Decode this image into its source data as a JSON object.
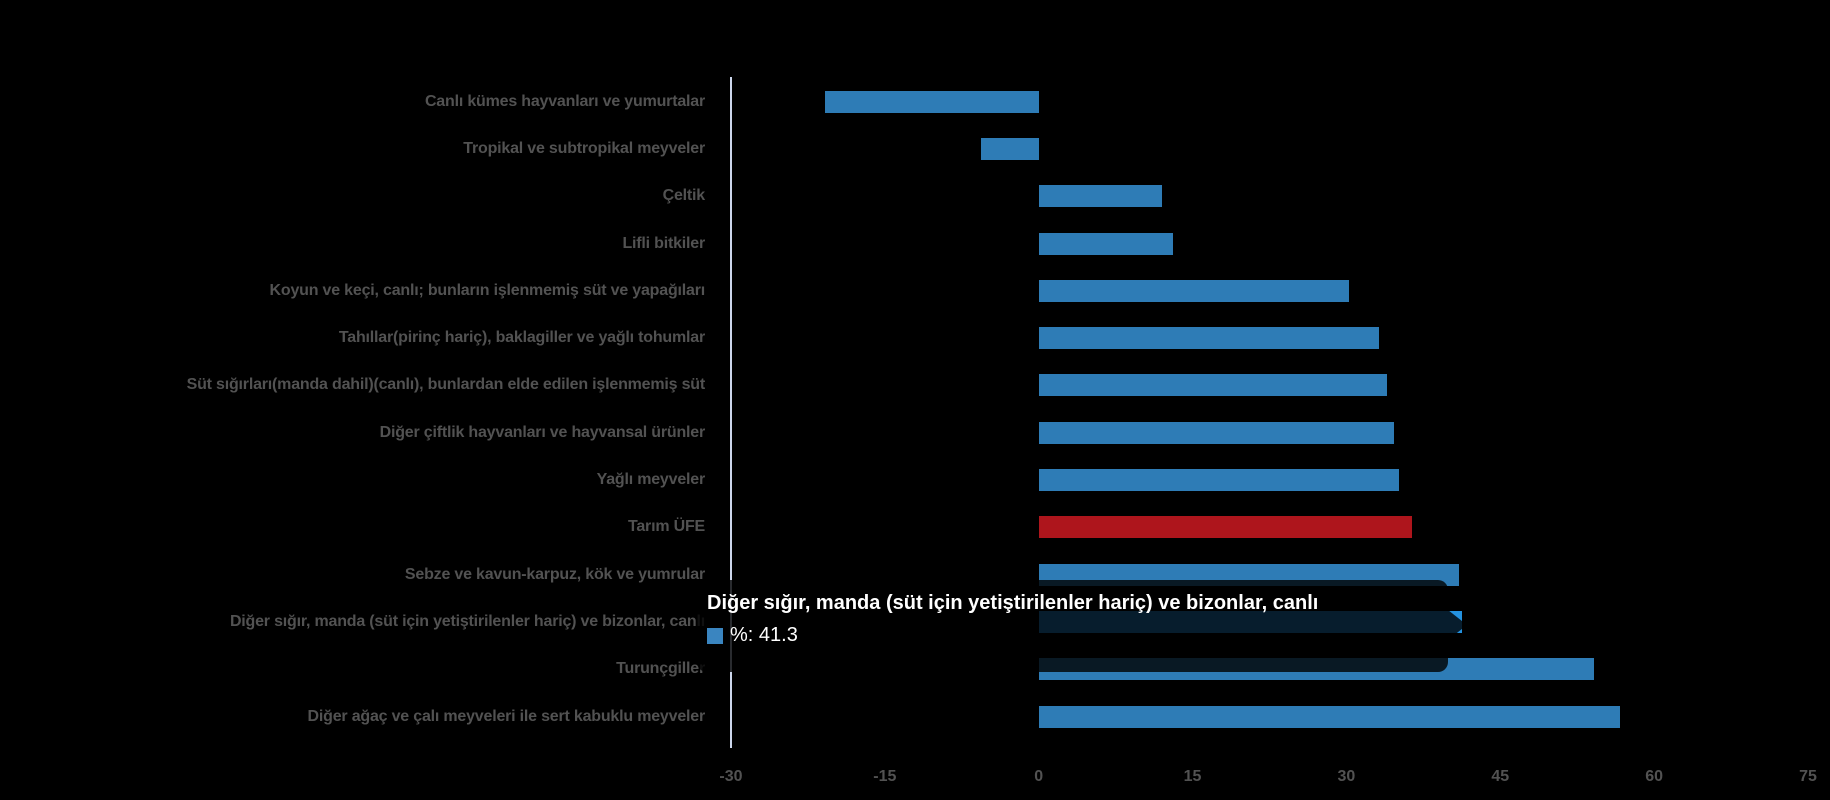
{
  "chart_data": {
    "type": "bar",
    "orientation": "horizontal",
    "title": "",
    "categories": [
      "Canlı kümes hayvanları ve yumurtalar",
      "Tropikal ve subtropikal meyveler",
      "Çeltik",
      "Lifli bitkiler",
      "Koyun ve keçi, canlı; bunların işlenmemiş süt ve yapağıları",
      "Tahıllar(pirinç hariç), baklagiller ve yağlı tohumlar",
      "Süt sığırları(manda dahil)(canlı), bunlardan elde edilen işlenmemiş süt",
      "Diğer çiftlik hayvanları ve hayvansal ürünler",
      "Yağlı meyveler",
      "Tarım ÜFE",
      "Sebze ve kavun-karpuz, kök ve yumrular",
      "Diğer sığır, manda (süt için yetiştirilenler hariç) ve bizonlar, canlı",
      "Turunçgiller",
      "Diğer ağaç ve çalı meyveleri ile sert kabuklu meyveler"
    ],
    "values": [
      -20.8,
      -5.6,
      12.0,
      13.1,
      30.3,
      33.2,
      34.0,
      34.6,
      35.1,
      36.4,
      41.0,
      41.3,
      54.1,
      56.7
    ],
    "series_name": "%",
    "x_ticks": [
      "-30",
      "-15",
      "0",
      "15",
      "30",
      "45",
      "60",
      "75"
    ],
    "x_tick_values": [
      -30,
      -15,
      0,
      15,
      30,
      45,
      60,
      75
    ],
    "xlim": [
      -30,
      75
    ],
    "grid": false,
    "legend": false,
    "highlighted_bar": {
      "index": 9,
      "category": "Tarım ÜFE",
      "color": "#ae151c"
    },
    "hovered_bar": {
      "index": 11,
      "category": "Diğer sığır, manda (süt için yetiştirilenler hariç) ve bizonlar, canlı",
      "value": 41.3,
      "color": "#2492e0"
    },
    "colors": {
      "bar_default": "#2e7cb6",
      "bar_highlight": "#ae151c",
      "bar_hover": "#2492e0",
      "axis_line": "#ccd6eb",
      "axis_label": "#525252",
      "background": "#000000"
    }
  },
  "tooltip": {
    "title": "Diğer sığır, manda (süt için yetiştirilenler hariç) ve bizonlar, canlı",
    "value_text": "%: 41.3",
    "swatch_color": "#3a85c0"
  }
}
